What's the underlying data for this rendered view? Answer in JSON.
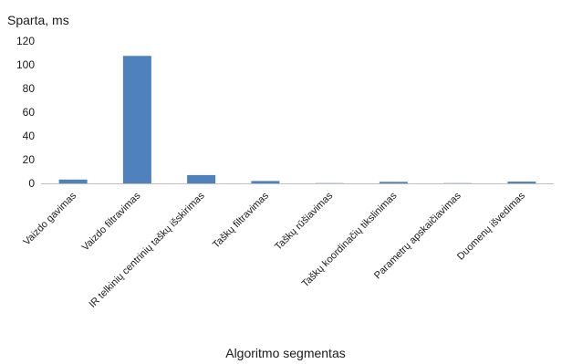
{
  "chart_data": {
    "type": "bar",
    "ylabel": "Sparta, ms",
    "xlabel": "Algoritmo segmentas",
    "ylim": [
      0,
      120
    ],
    "yticks": [
      0,
      20,
      40,
      60,
      80,
      100,
      120
    ],
    "grid": false,
    "legend": "none",
    "bar_color": "#4f81bd",
    "categories": [
      "Vaizdo gavimas",
      "Vaizdo filtravimas",
      "IR telkinių centrinių taškų išskirimas",
      "Taškų filtravimas",
      "Taškų rūšiavimas",
      "Taškų koordinačių tikslinimas",
      "Parametrų apskaičiavimas",
      "Duomenų išvedimas"
    ],
    "values": [
      3.2,
      107.5,
      7.0,
      2.0,
      0.2,
      1.3,
      0.2,
      1.5
    ]
  }
}
